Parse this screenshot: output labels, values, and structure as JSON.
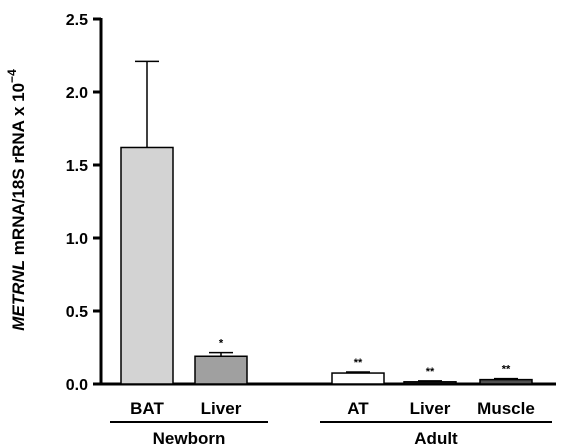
{
  "chart_data": {
    "type": "bar",
    "title": "",
    "ylabel": {
      "gene": "METRNL",
      "rest": " mRNA/18S rRNA x 10",
      "exponent": "−4"
    },
    "ylim": [
      0,
      2.5
    ],
    "yticks": [
      "0.0",
      "0.5",
      "1.0",
      "1.5",
      "2.0",
      "2.5"
    ],
    "grid": false,
    "groups": [
      {
        "name": "Newborn",
        "bars": [
          {
            "label": "BAT",
            "value": 1.62,
            "error": 0.59,
            "color": "#d3d3d3",
            "sig": ""
          },
          {
            "label": "Liver",
            "value": 0.19,
            "error": 0.025,
            "color": "#a0a0a0",
            "sig": "*"
          }
        ]
      },
      {
        "name": "Adult",
        "bars": [
          {
            "label": "AT",
            "value": 0.075,
            "error": 0.007,
            "color": "#ffffff",
            "sig": "**"
          },
          {
            "label": "Liver",
            "value": 0.015,
            "error": 0.006,
            "color": "#1a1a1a",
            "sig": "**"
          },
          {
            "label": "Muscle",
            "value": 0.03,
            "error": 0.007,
            "color": "#505050",
            "sig": "**"
          }
        ]
      }
    ]
  }
}
